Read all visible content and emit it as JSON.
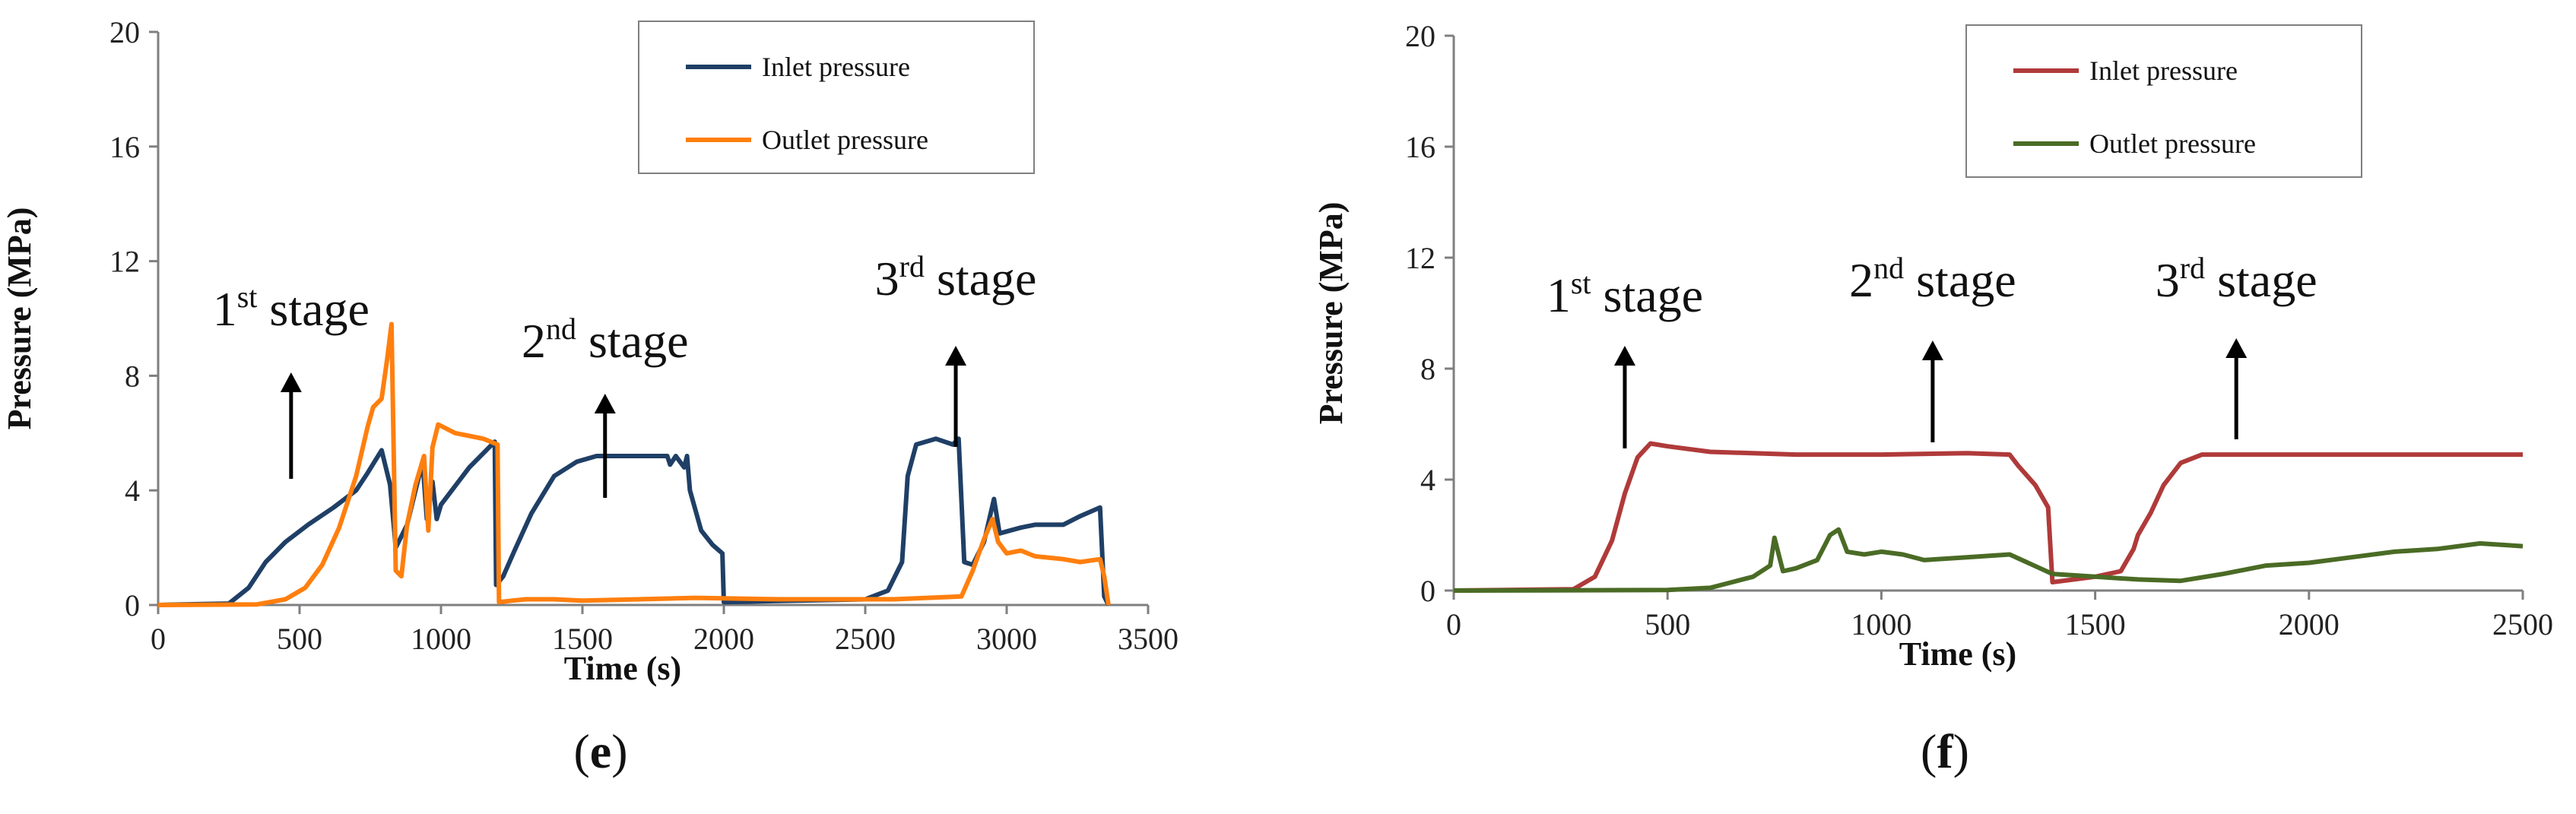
{
  "chart_data": [
    {
      "type": "line",
      "panel_label": "e",
      "xlabel": "Time (s)",
      "ylabel": "Pressure (MPa)",
      "xlim": [
        0,
        3500
      ],
      "ylim": [
        0,
        20
      ],
      "xticks": [
        0,
        500,
        1000,
        1500,
        2000,
        2500,
        3000,
        3500
      ],
      "yticks": [
        0,
        4,
        8,
        12,
        16,
        20
      ],
      "legend_position": "top-right",
      "series": [
        {
          "name": "Inlet pressure",
          "color": "#1f3f66",
          "points": [
            [
              0,
              0
            ],
            [
              250,
              0.05
            ],
            [
              320,
              0.6
            ],
            [
              380,
              1.5
            ],
            [
              450,
              2.2
            ],
            [
              530,
              2.8
            ],
            [
              620,
              3.4
            ],
            [
              700,
              4.0
            ],
            [
              740,
              4.6
            ],
            [
              790,
              5.4
            ],
            [
              820,
              4.2
            ],
            [
              840,
              2.0
            ],
            [
              880,
              2.8
            ],
            [
              910,
              4.0
            ],
            [
              935,
              5.0
            ],
            [
              950,
              3.0
            ],
            [
              970,
              4.3
            ],
            [
              985,
              3.0
            ],
            [
              1000,
              3.5
            ],
            [
              1100,
              4.8
            ],
            [
              1190,
              5.7
            ],
            [
              1195,
              0.7
            ],
            [
              1220,
              1.0
            ],
            [
              1260,
              1.9
            ],
            [
              1320,
              3.2
            ],
            [
              1400,
              4.5
            ],
            [
              1480,
              5.0
            ],
            [
              1550,
              5.2
            ],
            [
              1800,
              5.2
            ],
            [
              1810,
              4.9
            ],
            [
              1830,
              5.2
            ],
            [
              1860,
              4.8
            ],
            [
              1870,
              5.2
            ],
            [
              1880,
              4.0
            ],
            [
              1920,
              2.6
            ],
            [
              1960,
              2.1
            ],
            [
              1995,
              1.8
            ],
            [
              2000,
              0.1
            ],
            [
              2500,
              0.2
            ],
            [
              2580,
              0.5
            ],
            [
              2630,
              1.5
            ],
            [
              2650,
              4.5
            ],
            [
              2680,
              5.6
            ],
            [
              2750,
              5.8
            ],
            [
              2810,
              5.6
            ],
            [
              2830,
              5.8
            ],
            [
              2850,
              1.5
            ],
            [
              2880,
              1.4
            ],
            [
              2920,
              2.2
            ],
            [
              2955,
              3.7
            ],
            [
              2975,
              2.5
            ],
            [
              3050,
              2.7
            ],
            [
              3100,
              2.8
            ],
            [
              3200,
              2.8
            ],
            [
              3260,
              3.1
            ],
            [
              3330,
              3.4
            ],
            [
              3345,
              0.3
            ],
            [
              3360,
              0.0
            ]
          ]
        },
        {
          "name": "Outlet pressure",
          "color": "#ff7f0e",
          "points": [
            [
              0,
              0
            ],
            [
              350,
              0.02
            ],
            [
              450,
              0.2
            ],
            [
              520,
              0.6
            ],
            [
              580,
              1.4
            ],
            [
              640,
              2.7
            ],
            [
              700,
              4.5
            ],
            [
              740,
              6.2
            ],
            [
              760,
              6.9
            ],
            [
              790,
              7.2
            ],
            [
              810,
              8.6
            ],
            [
              825,
              9.8
            ],
            [
              840,
              1.2
            ],
            [
              860,
              1.0
            ],
            [
              880,
              2.8
            ],
            [
              910,
              4.2
            ],
            [
              940,
              5.2
            ],
            [
              955,
              2.6
            ],
            [
              970,
              5.5
            ],
            [
              990,
              6.3
            ],
            [
              1050,
              6.0
            ],
            [
              1150,
              5.8
            ],
            [
              1200,
              5.6
            ],
            [
              1205,
              0.1
            ],
            [
              1250,
              0.15
            ],
            [
              1300,
              0.2
            ],
            [
              1400,
              0.2
            ],
            [
              1500,
              0.15
            ],
            [
              1700,
              0.2
            ],
            [
              1900,
              0.25
            ],
            [
              2200,
              0.2
            ],
            [
              2600,
              0.2
            ],
            [
              2840,
              0.3
            ],
            [
              2880,
              1.2
            ],
            [
              2920,
              2.3
            ],
            [
              2950,
              3.0
            ],
            [
              2970,
              2.2
            ],
            [
              3000,
              1.8
            ],
            [
              3050,
              1.9
            ],
            [
              3100,
              1.7
            ],
            [
              3200,
              1.6
            ],
            [
              3260,
              1.5
            ],
            [
              3330,
              1.6
            ],
            [
              3345,
              1.0
            ],
            [
              3360,
              0.0
            ]
          ]
        }
      ],
      "annotations": [
        {
          "ordinal": "1",
          "suffix": "st",
          "text": "stage",
          "arrow_x": 470
        },
        {
          "ordinal": "2",
          "suffix": "nd",
          "text": "stage",
          "arrow_x": 1580
        },
        {
          "ordinal": "3",
          "suffix": "rd",
          "text": "stage",
          "arrow_x": 2820
        }
      ]
    },
    {
      "type": "line",
      "panel_label": "f",
      "xlabel": "Time (s)",
      "ylabel": "Pressure (MPa)",
      "xlim": [
        0,
        2500
      ],
      "ylim": [
        0,
        20
      ],
      "xticks": [
        0,
        500,
        1000,
        1500,
        2000,
        2500
      ],
      "yticks": [
        0,
        4,
        8,
        12,
        16,
        20
      ],
      "legend_position": "top-right",
      "series": [
        {
          "name": "Inlet pressure",
          "color": "#b03a3a",
          "points": [
            [
              0,
              0
            ],
            [
              280,
              0.05
            ],
            [
              330,
              0.5
            ],
            [
              370,
              1.8
            ],
            [
              400,
              3.5
            ],
            [
              430,
              4.8
            ],
            [
              460,
              5.3
            ],
            [
              500,
              5.2
            ],
            [
              600,
              5.0
            ],
            [
              800,
              4.9
            ],
            [
              1000,
              4.9
            ],
            [
              1200,
              4.95
            ],
            [
              1300,
              4.9
            ],
            [
              1320,
              4.5
            ],
            [
              1360,
              3.8
            ],
            [
              1390,
              3.0
            ],
            [
              1400,
              0.3
            ],
            [
              1500,
              0.5
            ],
            [
              1560,
              0.7
            ],
            [
              1590,
              1.5
            ],
            [
              1600,
              2.0
            ],
            [
              1630,
              2.8
            ],
            [
              1660,
              3.8
            ],
            [
              1700,
              4.6
            ],
            [
              1750,
              4.9
            ],
            [
              1900,
              4.9
            ],
            [
              2100,
              4.9
            ],
            [
              2300,
              4.9
            ],
            [
              2500,
              4.9
            ]
          ]
        },
        {
          "name": "Outlet pressure",
          "color": "#4a6b25",
          "points": [
            [
              0,
              0
            ],
            [
              500,
              0.02
            ],
            [
              600,
              0.1
            ],
            [
              700,
              0.5
            ],
            [
              740,
              0.9
            ],
            [
              750,
              1.9
            ],
            [
              770,
              0.7
            ],
            [
              800,
              0.8
            ],
            [
              850,
              1.1
            ],
            [
              880,
              2.0
            ],
            [
              900,
              2.2
            ],
            [
              920,
              1.4
            ],
            [
              960,
              1.3
            ],
            [
              1000,
              1.4
            ],
            [
              1050,
              1.3
            ],
            [
              1100,
              1.1
            ],
            [
              1200,
              1.2
            ],
            [
              1300,
              1.3
            ],
            [
              1400,
              0.6
            ],
            [
              1500,
              0.5
            ],
            [
              1600,
              0.4
            ],
            [
              1700,
              0.35
            ],
            [
              1800,
              0.6
            ],
            [
              1900,
              0.9
            ],
            [
              2000,
              1.0
            ],
            [
              2100,
              1.2
            ],
            [
              2200,
              1.4
            ],
            [
              2300,
              1.5
            ],
            [
              2400,
              1.7
            ],
            [
              2500,
              1.6
            ]
          ]
        }
      ],
      "annotations": [
        {
          "ordinal": "1",
          "suffix": "st",
          "text": "stage",
          "arrow_x": 400
        },
        {
          "ordinal": "2",
          "suffix": "nd",
          "text": "stage",
          "arrow_x": 1120
        },
        {
          "ordinal": "3",
          "suffix": "rd",
          "text": "stage",
          "arrow_x": 1830
        }
      ]
    }
  ]
}
